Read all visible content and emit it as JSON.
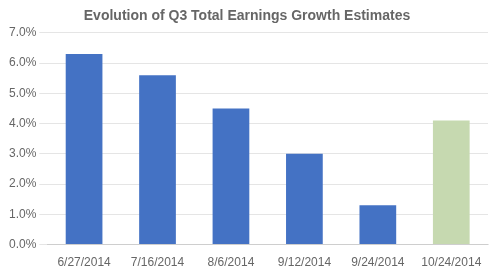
{
  "chart_data": {
    "type": "bar",
    "title": "Evolution of Q3 Total Earnings Growth Estimates",
    "categories": [
      "6/27/2014",
      "7/16/2014",
      "8/6/2014",
      "9/12/2014",
      "9/24/2014",
      "10/24/2014"
    ],
    "values": [
      0.063,
      0.056,
      0.045,
      0.03,
      0.013,
      0.041
    ],
    "colors": [
      "#4472C4",
      "#4472C4",
      "#4472C4",
      "#4472C4",
      "#4472C4",
      "#C6D9B0"
    ],
    "ylim": [
      0.0,
      0.07
    ],
    "yticks": [
      {
        "value": 0.0,
        "label": "0.0%"
      },
      {
        "value": 0.01,
        "label": "1.0%"
      },
      {
        "value": 0.02,
        "label": "2.0%"
      },
      {
        "value": 0.03,
        "label": "3.0%"
      },
      {
        "value": 0.04,
        "label": "4.0%"
      },
      {
        "value": 0.05,
        "label": "5.0%"
      },
      {
        "value": 0.06,
        "label": "6.0%"
      },
      {
        "value": 0.07,
        "label": "7.0%"
      }
    ],
    "grid": true
  }
}
